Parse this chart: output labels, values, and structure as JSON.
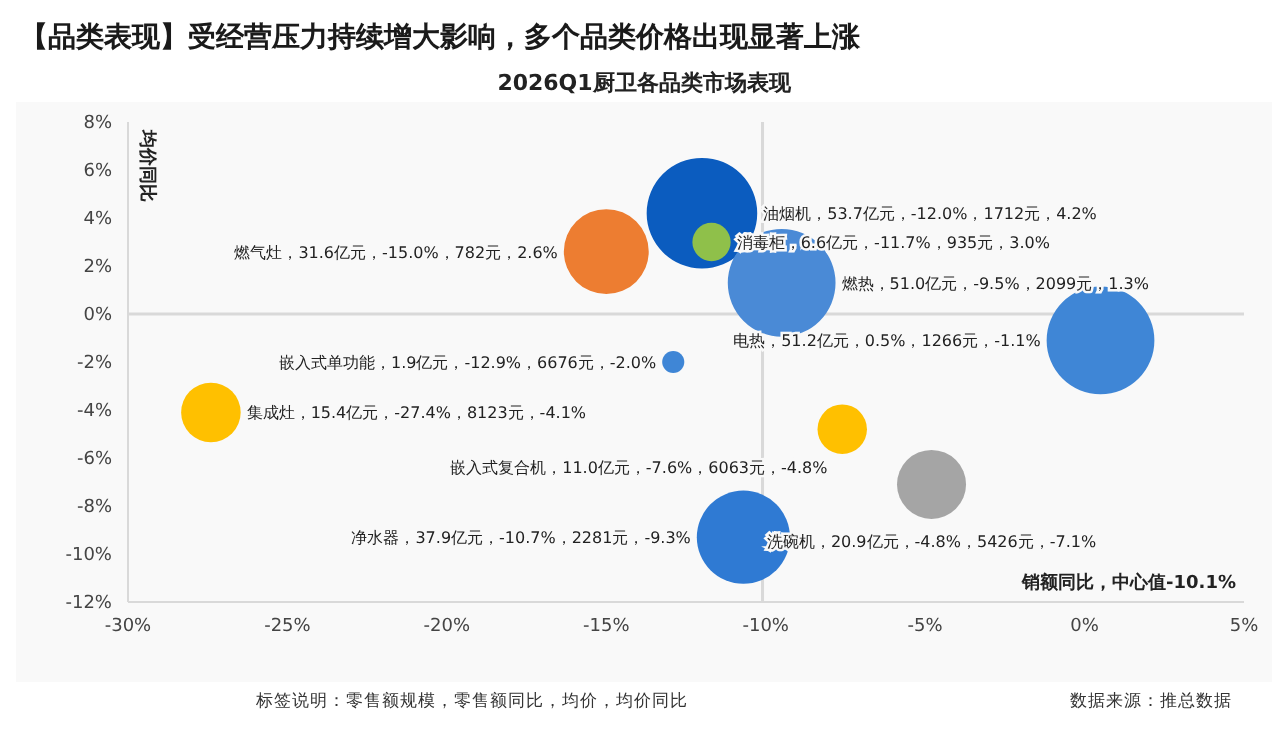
{
  "chart_data": {
    "type": "bubble",
    "title": "【品类表现】受经营压力持续增大影响，多个品类价格出现显著上涨",
    "subtitle": "2026Q1厨卫各品类市场表现",
    "xlabel": "销额同比，中心值-10.1%",
    "ylabel": "均价同比",
    "x": [
      -12.0,
      -15.0,
      -11.7,
      -9.5,
      0.5,
      -12.9,
      -27.4,
      -7.6,
      -4.8,
      -10.7
    ],
    "values": [
      4.2,
      2.6,
      3.0,
      1.3,
      -1.1,
      -2.0,
      -4.1,
      -4.8,
      -7.1,
      -9.3
    ],
    "sizes": [
      1,
      0.59,
      0.12,
      0.95,
      0.95,
      0.04,
      0.29,
      0.2,
      0.39,
      0.71
    ],
    "colors": [
      "#0b5cbf",
      "#ed7d31",
      "#8fc04a",
      "#4a8ad6",
      "#3f86d6",
      "#3f86d6",
      "#ffc000",
      "#ffc000",
      "#a5a5a5",
      "#2f7ad3"
    ],
    "value_labels": [
      "油烟机，53.7亿元，-12.0%，1712元，4.2%",
      "燃气灶，31.6亿元，-15.0%，782元，2.6%",
      "消毒柜，6.6亿元，-11.7%，935元，3.0%",
      "燃热，51.0亿元，-9.5%，2099元，1.3%",
      "电热，51.2亿元，0.5%，1266元，-1.1%",
      "嵌入式单功能，1.9亿元，-12.9%，6676元，-2.0%",
      "集成灶，15.4亿元，-27.4%，8123元，-4.1%",
      "嵌入式复合机，11.0亿元，-7.6%，6063元，-4.8%",
      "洗碗机，20.9亿元，-4.8%，5426元，-7.1%",
      "净水器，37.9亿元，-10.7%，2281元，-9.3%"
    ],
    "xlim": [
      -30,
      5
    ],
    "xticks": [
      {
        "value": -30,
        "label": "-30%"
      },
      {
        "value": -25,
        "label": "-25%"
      },
      {
        "value": -20,
        "label": "-20%"
      },
      {
        "value": -15,
        "label": "-15%"
      },
      {
        "value": -10,
        "label": "-10%"
      },
      {
        "value": -5,
        "label": "-5%"
      },
      {
        "value": 0,
        "label": "0%"
      },
      {
        "value": 5,
        "label": "5%"
      }
    ],
    "ylim": [
      -12,
      8
    ],
    "yticks": [
      {
        "value": -12,
        "label": "-12%"
      },
      {
        "value": -10,
        "label": "-10%"
      },
      {
        "value": -8,
        "label": "-8%"
      },
      {
        "value": -6,
        "label": "-6%"
      },
      {
        "value": -4,
        "label": "-4%"
      },
      {
        "value": -2,
        "label": "-2%"
      },
      {
        "value": 0,
        "label": "0%"
      },
      {
        "value": 2,
        "label": "2%"
      },
      {
        "value": 4,
        "label": "4%"
      },
      {
        "value": 6,
        "label": "6%"
      },
      {
        "value": 8,
        "label": "8%"
      }
    ],
    "ref_lines": [
      {
        "axis": "x",
        "value": -10.1,
        "color": "#d9d9d9"
      },
      {
        "axis": "y",
        "value": 0,
        "color": "#d9d9d9"
      }
    ],
    "grid": false,
    "legend": false,
    "annotations": [
      "标签说明：零售额规模，零售额同比，均价，均价同比",
      "数据来源：推总数据"
    ]
  }
}
